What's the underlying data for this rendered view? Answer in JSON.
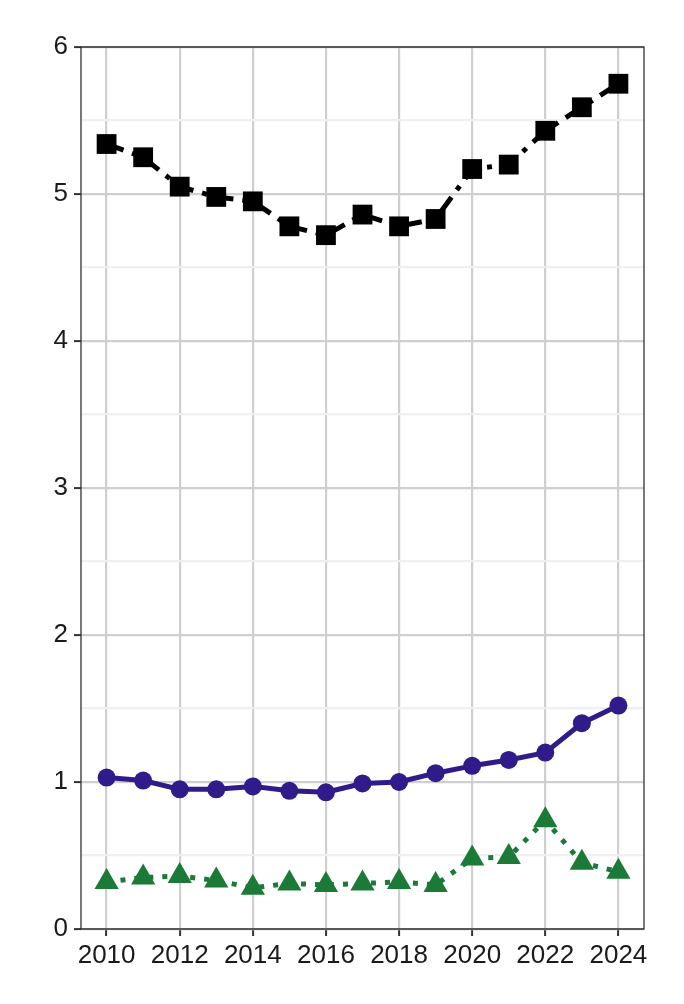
{
  "chart_data": {
    "type": "line",
    "x": [
      2010,
      2011,
      2012,
      2013,
      2014,
      2015,
      2016,
      2017,
      2018,
      2019,
      2020,
      2021,
      2022,
      2023,
      2024
    ],
    "xlim": [
      2009.3,
      2024.7
    ],
    "xticks": [
      2010,
      2012,
      2014,
      2016,
      2018,
      2020,
      2022,
      2024
    ],
    "ylim": [
      0,
      6
    ],
    "yticks": [
      0,
      {
        "value": 0.5,
        "label": null
      },
      1,
      {
        "value": 1.5,
        "label": null
      },
      2,
      {
        "value": 2.5,
        "label": null
      },
      3,
      {
        "value": 3.5,
        "label": null
      },
      4,
      {
        "value": 4.5,
        "label": null
      },
      5,
      {
        "value": 5.5,
        "label": null
      },
      6
    ],
    "grid": true,
    "series": [
      {
        "color": "#000000",
        "marker": "square",
        "line_style": "dashdot",
        "values": [
          5.34,
          5.25,
          5.05,
          4.98,
          4.95,
          4.78,
          4.72,
          4.86,
          4.78,
          4.83,
          5.17,
          5.2,
          5.43,
          5.59,
          5.75
        ]
      },
      {
        "color": "#311b8a",
        "marker": "circle",
        "line_style": "solid",
        "values": [
          1.03,
          1.01,
          0.95,
          0.95,
          0.97,
          0.94,
          0.93,
          0.99,
          1.0,
          1.06,
          1.11,
          1.15,
          1.2,
          1.4,
          1.52
        ]
      },
      {
        "color": "#1b7a37",
        "marker": "triangle",
        "line_style": "dotted",
        "values": [
          0.32,
          0.35,
          0.36,
          0.33,
          0.28,
          0.31,
          0.3,
          0.31,
          0.32,
          0.3,
          0.48,
          0.49,
          0.74,
          0.45,
          0.39
        ]
      }
    ]
  }
}
